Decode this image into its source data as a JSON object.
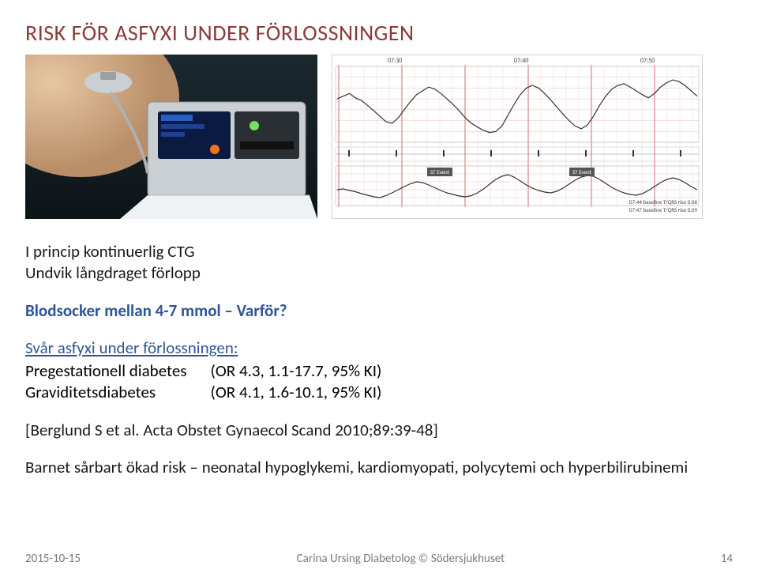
{
  "title": "RISK FÖR ASFYXI UNDER FÖRLOSSNINGEN",
  "bullets": {
    "l1": "I princip kontinuerlig CTG",
    "l2": "Undvik långdraget förlopp"
  },
  "bs_heading": "Blodsocker mellan 4-7 mmol – Varför?",
  "asphyxia_link": "Svår asfyxi under förlossningen:",
  "table": {
    "r1c1": "Pregestationell diabetes",
    "r1c2": "(OR 4.3, 1.1-17.7, 95% KI)",
    "r2c1": "Graviditetsdiabetes",
    "r2c2": "(OR 4.1, 1.6-10.1, 95% KI)"
  },
  "ref": "[Berglund S et al. Acta Obstet Gynaecol Scand 2010;89:39-48]",
  "risk_line": "Barnet sårbart ökad risk – neonatal hypoglykemi, kardiomyopati, polycytemi och hyperbilirubinemi",
  "footer": {
    "date": "2015-10-15",
    "center": "Carina Ursing Diabetolog © Södersjukhuset",
    "page": "14"
  },
  "ctg_chart": {
    "time_labels": [
      "07:30",
      "07:40",
      "07:50"
    ],
    "caption1": "07:44 baseline T/QRS rise 0.06",
    "caption2": "07:47 baseline T/QRS rise 0.09",
    "st_event": "ST Event",
    "line_color": "#333333",
    "grid_color": "#e6a0a0",
    "upper_y": [
      60,
      200
    ],
    "lower_y": [
      0,
      100
    ],
    "upper_series": [
      140,
      145,
      150,
      142,
      137,
      128,
      118,
      108,
      98,
      95,
      105,
      120,
      135,
      148,
      155,
      162,
      158,
      150,
      140,
      130,
      118,
      105,
      95,
      88,
      82,
      78,
      80,
      90,
      110,
      130,
      148,
      160,
      165,
      160,
      150,
      138,
      125,
      112,
      100,
      90,
      85,
      92,
      108,
      128,
      145,
      158,
      165,
      168,
      162,
      155,
      148,
      142,
      150,
      162,
      170,
      175,
      172,
      165,
      155,
      145
    ],
    "mid_series": [
      40,
      42,
      38,
      35,
      30,
      26,
      22,
      20,
      25,
      32,
      40,
      48,
      55,
      60,
      58,
      52,
      45,
      38,
      32,
      28,
      24,
      22,
      25,
      32,
      42,
      54,
      66,
      74,
      78,
      72,
      62,
      52,
      44,
      38,
      34,
      32,
      36,
      44,
      54,
      64,
      72,
      76,
      74,
      66,
      56,
      46,
      38,
      32,
      28,
      26,
      30,
      38,
      48,
      58,
      66,
      70,
      66,
      58,
      48,
      40
    ]
  },
  "photo": {
    "bg_top": "#1b2a30",
    "bg_bottom": "#0d1418",
    "skin": "#d9b58e",
    "device_body": "#c9cfd2",
    "device_dark": "#2a2f33",
    "screen": "#0a1a40",
    "accent": "#f07020",
    "sheet": "#eef2f4"
  }
}
